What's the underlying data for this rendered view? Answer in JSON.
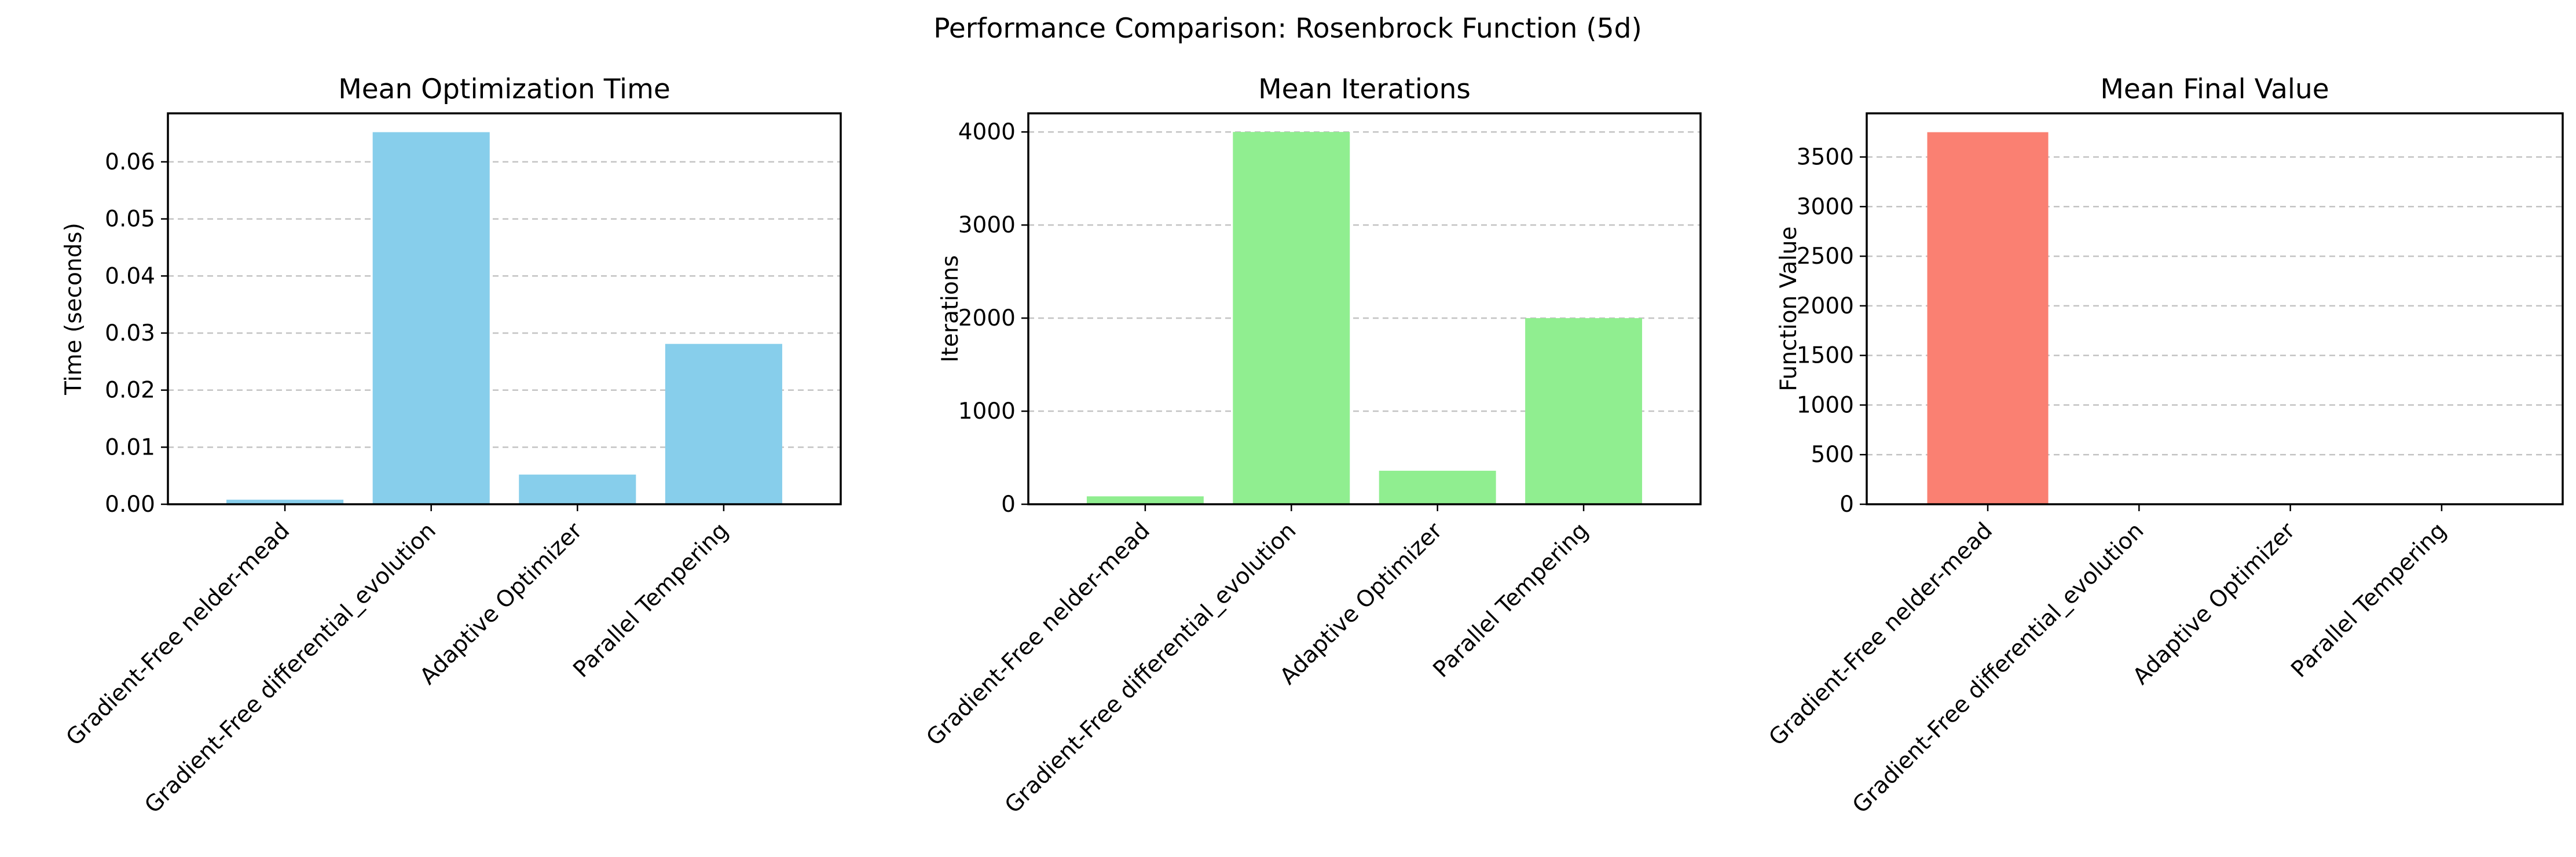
{
  "figure": {
    "suptitle": "Performance Comparison: Rosenbrock Function (5d)"
  },
  "chart_data": [
    {
      "type": "bar",
      "title": "Mean Optimization Time",
      "xlabel": "",
      "ylabel": "Time (seconds)",
      "categories": [
        "Gradient-Free nelder-mead",
        "Gradient-Free differential_evolution",
        "Adaptive Optimizer",
        "Parallel Tempering"
      ],
      "values": [
        0.0008,
        0.0652,
        0.0052,
        0.0281
      ],
      "ylim": [
        0,
        0.0685
      ],
      "yticks": [
        0,
        0.01,
        0.02,
        0.03,
        0.04,
        0.05,
        0.06
      ],
      "ytick_labels": [
        "0.00",
        "0.01",
        "0.02",
        "0.03",
        "0.04",
        "0.05",
        "0.06"
      ],
      "color": "#87ceeb",
      "grid": "y-dashed"
    },
    {
      "type": "bar",
      "title": "Mean Iterations",
      "xlabel": "",
      "ylabel": "Iterations",
      "categories": [
        "Gradient-Free nelder-mead",
        "Gradient-Free differential_evolution",
        "Adaptive Optimizer",
        "Parallel Tempering"
      ],
      "values": [
        85,
        4000,
        360,
        2000
      ],
      "ylim": [
        0,
        4200
      ],
      "yticks": [
        0,
        1000,
        2000,
        3000,
        4000
      ],
      "ytick_labels": [
        "0",
        "1000",
        "2000",
        "3000",
        "4000"
      ],
      "color": "#90ee90",
      "grid": "y-dashed"
    },
    {
      "type": "bar",
      "title": "Mean Final Value",
      "xlabel": "",
      "ylabel": "Function Value",
      "categories": [
        "Gradient-Free nelder-mead",
        "Gradient-Free differential_evolution",
        "Adaptive Optimizer",
        "Parallel Tempering"
      ],
      "values": [
        3750,
        0,
        0,
        0
      ],
      "ylim": [
        0,
        3940
      ],
      "yticks": [
        0,
        500,
        1000,
        1500,
        2000,
        2500,
        3000,
        3500
      ],
      "ytick_labels": [
        "0",
        "500",
        "1000",
        "1500",
        "2000",
        "2500",
        "3000",
        "3500"
      ],
      "color": "#fa8072",
      "grid": "y-dashed"
    }
  ]
}
